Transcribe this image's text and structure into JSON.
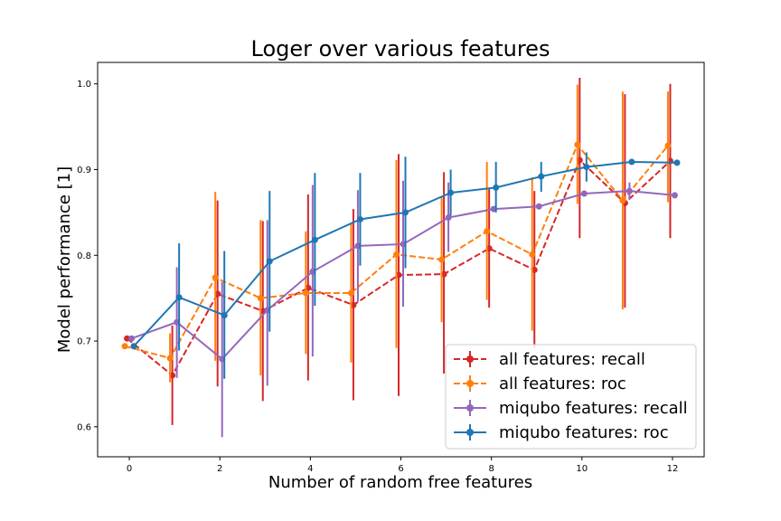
{
  "chart_data": {
    "type": "line",
    "title": "Loger over various features",
    "xlabel": "Number of random free features",
    "ylabel": "Model performance [1]",
    "xlim": [
      -0.7,
      12.7
    ],
    "ylim": [
      0.565,
      1.025
    ],
    "xticks": [
      0,
      2,
      4,
      6,
      8,
      10,
      12
    ],
    "yticks": [
      0.6,
      0.7,
      0.8,
      0.9,
      1.0
    ],
    "ytick_labels": [
      "0.6",
      "0.7",
      "0.8",
      "0.9",
      "1.0"
    ],
    "grid": false,
    "legend_position": "lower-right",
    "series": [
      {
        "name": "all features: recall",
        "color": "#d62728",
        "linestyle": "dashed",
        "offset": -0.05,
        "x": [
          0,
          1,
          2,
          3,
          4,
          5,
          6,
          7,
          8,
          9,
          10,
          11,
          12
        ],
        "y": [
          0.703,
          0.66,
          0.755,
          0.735,
          0.762,
          0.742,
          0.777,
          0.778,
          0.808,
          0.783,
          0.911,
          0.861,
          0.91
        ],
        "err_low": [
          0.703,
          0.602,
          0.647,
          0.63,
          0.654,
          0.631,
          0.636,
          0.662,
          0.739,
          0.692,
          0.82,
          0.739,
          0.82
        ],
        "err_high": [
          0.703,
          0.718,
          0.864,
          0.84,
          0.871,
          0.854,
          0.918,
          0.897,
          0.877,
          0.875,
          1.007,
          0.988,
          1.0
        ]
      },
      {
        "name": "all features: roc",
        "color": "#ff7f0e",
        "linestyle": "dashed",
        "offset": -0.1,
        "x": [
          0,
          1,
          2,
          3,
          4,
          5,
          6,
          7,
          8,
          9,
          10,
          11,
          12
        ],
        "y": [
          0.694,
          0.68,
          0.774,
          0.75,
          0.756,
          0.756,
          0.801,
          0.795,
          0.828,
          0.801,
          0.929,
          0.864,
          0.928
        ],
        "err_low": [
          0.694,
          0.652,
          0.677,
          0.66,
          0.685,
          0.675,
          0.692,
          0.722,
          0.748,
          0.712,
          0.86,
          0.737,
          0.862
        ],
        "err_high": [
          0.694,
          0.709,
          0.874,
          0.841,
          0.828,
          0.838,
          0.911,
          0.869,
          0.909,
          0.891,
          0.999,
          0.991,
          0.991
        ]
      },
      {
        "name": "miqubo features: recall",
        "color": "#9467bd",
        "linestyle": "solid",
        "offset": 0.05,
        "x": [
          0,
          1,
          2,
          3,
          4,
          5,
          6,
          7,
          8,
          9,
          10,
          11,
          12
        ],
        "y": [
          0.703,
          0.722,
          0.679,
          0.736,
          0.781,
          0.811,
          0.813,
          0.844,
          0.854,
          0.857,
          0.872,
          0.875,
          0.87
        ],
        "err_low": [
          0.703,
          0.657,
          0.588,
          0.648,
          0.682,
          0.746,
          0.74,
          0.804,
          0.854,
          0.857,
          0.872,
          0.865,
          0.87
        ],
        "err_high": [
          0.703,
          0.786,
          0.769,
          0.841,
          0.882,
          0.876,
          0.887,
          0.885,
          0.854,
          0.857,
          0.872,
          0.885,
          0.87
        ]
      },
      {
        "name": "miqubo features: roc",
        "color": "#1f77b4",
        "linestyle": "solid",
        "offset": 0.1,
        "x": [
          0,
          1,
          2,
          3,
          4,
          5,
          6,
          7,
          8,
          9,
          10,
          11,
          12
        ],
        "y": [
          0.694,
          0.751,
          0.73,
          0.793,
          0.818,
          0.842,
          0.85,
          0.873,
          0.879,
          0.892,
          0.903,
          0.909,
          0.908
        ],
        "err_low": [
          0.694,
          0.689,
          0.656,
          0.711,
          0.741,
          0.788,
          0.785,
          0.846,
          0.85,
          0.874,
          0.886,
          0.909,
          0.908
        ],
        "err_high": [
          0.694,
          0.814,
          0.805,
          0.875,
          0.896,
          0.896,
          0.915,
          0.9,
          0.909,
          0.909,
          0.92,
          0.909,
          0.908
        ]
      }
    ]
  }
}
